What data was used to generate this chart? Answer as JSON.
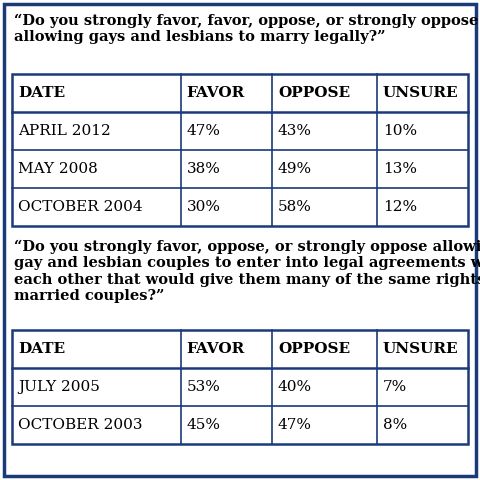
{
  "bg_color": "#ffffff",
  "border_color": "#1a3a7a",
  "text_color": "#000000",
  "question1": "“Do you strongly favor, favor, oppose, or strongly oppose\nallowing gays and lesbians to marry legally?”",
  "question2": "“Do you strongly favor, oppose, or strongly oppose allowing\ngay and lesbian couples to enter into legal agreements with\neach other that would give them many of the same rights as\nmarried couples?”",
  "table1_headers": [
    "DATE",
    "FAVOR",
    "OPPOSE",
    "UNSURE"
  ],
  "table1_rows": [
    [
      "APRIL 2012",
      "47%",
      "43%",
      "10%"
    ],
    [
      "MAY 2008",
      "38%",
      "49%",
      "13%"
    ],
    [
      "OCTOBER 2004",
      "30%",
      "58%",
      "12%"
    ]
  ],
  "table2_headers": [
    "DATE",
    "FAVOR",
    "OPPOSE",
    "UNSURE"
  ],
  "table2_rows": [
    [
      "JULY 2005",
      "53%",
      "40%",
      "7%"
    ],
    [
      "OCTOBER 2003",
      "45%",
      "47%",
      "8%"
    ]
  ],
  "font_size_question": 10.5,
  "font_size_header": 11.0,
  "font_size_data": 11.0,
  "outer_border_lw": 2.5,
  "table_border_lw": 1.8,
  "inner_line_lw": 1.2
}
